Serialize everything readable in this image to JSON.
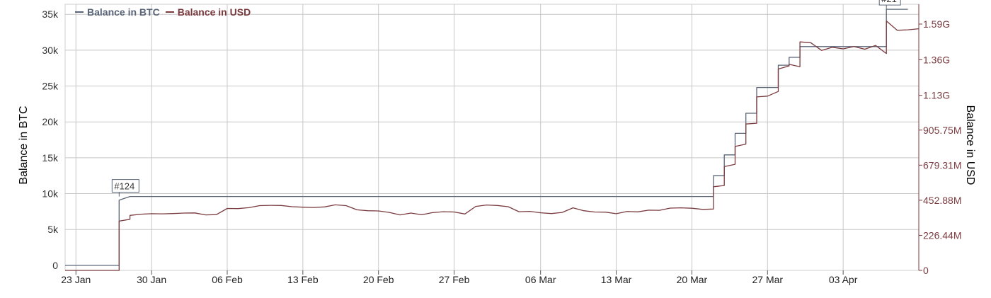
{
  "chart_data": {
    "type": "line",
    "legend": [
      {
        "name": "Balance in BTC",
        "color": "#5a6577"
      },
      {
        "name": "Balance in USD",
        "color": "#7a3b3f"
      }
    ],
    "legend_placement": "top-left",
    "grid": true,
    "x_axis": {
      "type": "date",
      "range": [
        "2024-01-22",
        "2024-04-10"
      ],
      "ticks": [
        {
          "date": "2024-01-23",
          "label": "23 Jan"
        },
        {
          "date": "2024-01-30",
          "label": "30 Jan"
        },
        {
          "date": "2024-02-06",
          "label": "06 Feb"
        },
        {
          "date": "2024-02-13",
          "label": "13 Feb"
        },
        {
          "date": "2024-02-20",
          "label": "20 Feb"
        },
        {
          "date": "2024-02-27",
          "label": "27 Feb"
        },
        {
          "date": "2024-03-06",
          "label": "06 Mar"
        },
        {
          "date": "2024-03-13",
          "label": "13 Mar"
        },
        {
          "date": "2024-03-20",
          "label": "20 Mar"
        },
        {
          "date": "2024-03-27",
          "label": "27 Mar"
        },
        {
          "date": "2024-04-03",
          "label": "03 Apr"
        }
      ]
    },
    "y_left": {
      "label": "Balance in BTC",
      "range": [
        -700,
        36400
      ],
      "ticks": [
        {
          "value": 0,
          "label": "0"
        },
        {
          "value": 5000,
          "label": "5k"
        },
        {
          "value": 10000,
          "label": "10k"
        },
        {
          "value": 15000,
          "label": "15k"
        },
        {
          "value": 20000,
          "label": "20k"
        },
        {
          "value": 25000,
          "label": "25k"
        },
        {
          "value": 30000,
          "label": "30k"
        },
        {
          "value": 35000,
          "label": "35k"
        }
      ]
    },
    "y_right": {
      "label": "Balance in USD",
      "range": [
        0,
        1718000000
      ],
      "ticks": [
        {
          "value": 0,
          "label": "0"
        },
        {
          "value": 226440000,
          "label": "226.44M"
        },
        {
          "value": 452880000,
          "label": "452.88M"
        },
        {
          "value": 679310000,
          "label": "679.31M"
        },
        {
          "value": 905750000,
          "label": "905.75M"
        },
        {
          "value": 1130000000,
          "label": "1.13G"
        },
        {
          "value": 1360000000,
          "label": "1.36G"
        },
        {
          "value": 1590000000,
          "label": "1.59G"
        }
      ]
    },
    "series": [
      {
        "name": "Balance in BTC",
        "axis": "left",
        "color": "#5a6577",
        "step": true,
        "points": [
          [
            "2024-01-22",
            0
          ],
          [
            "2024-01-27",
            0
          ],
          [
            "2024-01-27",
            9100
          ],
          [
            "2024-01-28",
            9600
          ],
          [
            "2024-03-22",
            9600
          ],
          [
            "2024-03-22",
            12500
          ],
          [
            "2024-03-23",
            12500
          ],
          [
            "2024-03-23",
            15400
          ],
          [
            "2024-03-24",
            15400
          ],
          [
            "2024-03-24",
            18400
          ],
          [
            "2024-03-25",
            18400
          ],
          [
            "2024-03-25",
            21200
          ],
          [
            "2024-03-26",
            21200
          ],
          [
            "2024-03-26",
            24800
          ],
          [
            "2024-03-28",
            24800
          ],
          [
            "2024-03-28",
            27900
          ],
          [
            "2024-03-29",
            27900
          ],
          [
            "2024-03-29",
            29000
          ],
          [
            "2024-03-30",
            29000
          ],
          [
            "2024-03-30",
            30500
          ],
          [
            "2024-04-07",
            30500
          ],
          [
            "2024-04-07",
            35700
          ],
          [
            "2024-04-09",
            35700
          ]
        ]
      },
      {
        "name": "Balance in USD",
        "axis": "right",
        "color": "#7a3b3f",
        "step": false,
        "points": [
          [
            "2024-01-22",
            0
          ],
          [
            "2024-01-27",
            0
          ],
          [
            "2024-01-27",
            318000000
          ],
          [
            "2024-01-28",
            330000000
          ],
          [
            "2024-01-28",
            355000000
          ],
          [
            "2024-01-29",
            363000000
          ],
          [
            "2024-01-30",
            366000000
          ],
          [
            "2024-01-31",
            365000000
          ],
          [
            "2024-02-01",
            367000000
          ],
          [
            "2024-02-02",
            370000000
          ],
          [
            "2024-02-03",
            371000000
          ],
          [
            "2024-02-04",
            358000000
          ],
          [
            "2024-02-05",
            360000000
          ],
          [
            "2024-02-06",
            400000000
          ],
          [
            "2024-02-07",
            399000000
          ],
          [
            "2024-02-08",
            405000000
          ],
          [
            "2024-02-09",
            418000000
          ],
          [
            "2024-02-10",
            420000000
          ],
          [
            "2024-02-11",
            419000000
          ],
          [
            "2024-02-12",
            411000000
          ],
          [
            "2024-02-13",
            408000000
          ],
          [
            "2024-02-14",
            406000000
          ],
          [
            "2024-02-15",
            410000000
          ],
          [
            "2024-02-16",
            423000000
          ],
          [
            "2024-02-17",
            418000000
          ],
          [
            "2024-02-18",
            391000000
          ],
          [
            "2024-02-19",
            385000000
          ],
          [
            "2024-02-20",
            384000000
          ],
          [
            "2024-02-21",
            374000000
          ],
          [
            "2024-02-22",
            358000000
          ],
          [
            "2024-02-23",
            370000000
          ],
          [
            "2024-02-24",
            359000000
          ],
          [
            "2024-02-25",
            373000000
          ],
          [
            "2024-02-26",
            379000000
          ],
          [
            "2024-02-27",
            377000000
          ],
          [
            "2024-02-28",
            364000000
          ],
          [
            "2024-02-29",
            413000000
          ],
          [
            "2024-03-01",
            422000000
          ],
          [
            "2024-03-02",
            419000000
          ],
          [
            "2024-03-03",
            411000000
          ],
          [
            "2024-03-04",
            379000000
          ],
          [
            "2024-03-05",
            381000000
          ],
          [
            "2024-03-06",
            372000000
          ],
          [
            "2024-03-07",
            367000000
          ],
          [
            "2024-03-08",
            374000000
          ],
          [
            "2024-03-09",
            404000000
          ],
          [
            "2024-03-10",
            385000000
          ],
          [
            "2024-03-11",
            377000000
          ],
          [
            "2024-03-12",
            376000000
          ],
          [
            "2024-03-13",
            366000000
          ],
          [
            "2024-03-14",
            380000000
          ],
          [
            "2024-03-15",
            378000000
          ],
          [
            "2024-03-16",
            389000000
          ],
          [
            "2024-03-17",
            388000000
          ],
          [
            "2024-03-18",
            402000000
          ],
          [
            "2024-03-19",
            404000000
          ],
          [
            "2024-03-20",
            401000000
          ],
          [
            "2024-03-21",
            394000000
          ],
          [
            "2024-03-22",
            396000000
          ],
          [
            "2024-03-22",
            540000000
          ],
          [
            "2024-03-23",
            548000000
          ],
          [
            "2024-03-23",
            670000000
          ],
          [
            "2024-03-24",
            685000000
          ],
          [
            "2024-03-24",
            800000000
          ],
          [
            "2024-03-25",
            815000000
          ],
          [
            "2024-03-25",
            945000000
          ],
          [
            "2024-03-26",
            950000000
          ],
          [
            "2024-03-26",
            1120000000
          ],
          [
            "2024-03-27",
            1125000000
          ],
          [
            "2024-03-28",
            1155000000
          ],
          [
            "2024-03-28",
            1300000000
          ],
          [
            "2024-03-29",
            1320000000
          ],
          [
            "2024-03-29",
            1330000000
          ],
          [
            "2024-03-30",
            1315000000
          ],
          [
            "2024-03-30",
            1475000000
          ],
          [
            "2024-03-31",
            1470000000
          ],
          [
            "2024-04-01",
            1420000000
          ],
          [
            "2024-04-02",
            1440000000
          ],
          [
            "2024-04-03",
            1430000000
          ],
          [
            "2024-04-04",
            1445000000
          ],
          [
            "2024-04-05",
            1428000000
          ],
          [
            "2024-04-06",
            1452000000
          ],
          [
            "2024-04-07",
            1400000000
          ],
          [
            "2024-04-07",
            1610000000
          ],
          [
            "2024-04-08",
            1550000000
          ],
          [
            "2024-04-09",
            1553000000
          ],
          [
            "2024-04-10",
            1560000000
          ]
        ]
      }
    ],
    "annotations": [
      {
        "label": "#124",
        "date": "2024-01-27",
        "series": "Balance in BTC",
        "value": 9600
      },
      {
        "label": "#21",
        "date": "2024-04-07",
        "series": "Balance in BTC",
        "value": 35700
      }
    ]
  }
}
